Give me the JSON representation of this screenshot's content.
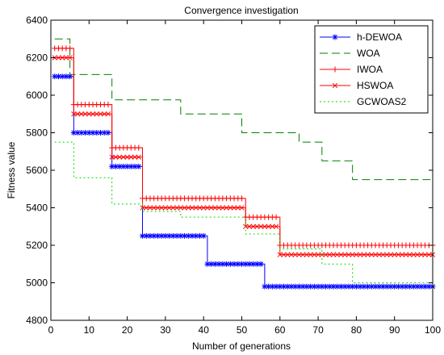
{
  "chart_data": {
    "type": "line",
    "title": "Convergence investigation",
    "xlabel": "Number of generations",
    "ylabel": "Fitness value",
    "xlim": [
      0,
      100
    ],
    "ylim": [
      4800,
      6400
    ],
    "xticks": [
      0,
      10,
      20,
      30,
      40,
      50,
      60,
      70,
      80,
      90,
      100
    ],
    "yticks": [
      4800,
      5000,
      5200,
      5400,
      5600,
      5800,
      6000,
      6200,
      6400
    ],
    "grid": false,
    "legend_position": "top-right",
    "series": [
      {
        "name": "h-DEWOA",
        "color": "#0000ff",
        "dash": "solid",
        "marker": "asterisk",
        "points": [
          [
            1,
            6100
          ],
          [
            6,
            6100
          ],
          [
            6,
            5800
          ],
          [
            16,
            5800
          ],
          [
            16,
            5620
          ],
          [
            24,
            5620
          ],
          [
            24,
            5250
          ],
          [
            41,
            5250
          ],
          [
            41,
            5100
          ],
          [
            56,
            5100
          ],
          [
            56,
            4980
          ],
          [
            100,
            4980
          ]
        ]
      },
      {
        "name": "WOA",
        "color": "#008000",
        "dash": "dashed",
        "marker": "none",
        "points": [
          [
            1,
            6300
          ],
          [
            5,
            6300
          ],
          [
            5,
            6110
          ],
          [
            16,
            6110
          ],
          [
            16,
            5975
          ],
          [
            34,
            5975
          ],
          [
            34,
            5900
          ],
          [
            50,
            5900
          ],
          [
            50,
            5800
          ],
          [
            65,
            5800
          ],
          [
            65,
            5750
          ],
          [
            71,
            5750
          ],
          [
            71,
            5650
          ],
          [
            79,
            5650
          ],
          [
            79,
            5550
          ],
          [
            100,
            5550
          ]
        ]
      },
      {
        "name": "IWOA",
        "color": "#ff0000",
        "dash": "solid",
        "marker": "plus",
        "points": [
          [
            1,
            6250
          ],
          [
            6,
            6250
          ],
          [
            6,
            5950
          ],
          [
            16,
            5950
          ],
          [
            16,
            5720
          ],
          [
            24,
            5720
          ],
          [
            24,
            5450
          ],
          [
            51,
            5450
          ],
          [
            51,
            5350
          ],
          [
            60,
            5350
          ],
          [
            60,
            5200
          ],
          [
            100,
            5200
          ]
        ]
      },
      {
        "name": "HSWOA",
        "color": "#ff0000",
        "dash": "solid",
        "marker": "x",
        "points": [
          [
            1,
            6200
          ],
          [
            6,
            6200
          ],
          [
            6,
            5900
          ],
          [
            16,
            5900
          ],
          [
            16,
            5670
          ],
          [
            24,
            5670
          ],
          [
            24,
            5400
          ],
          [
            51,
            5400
          ],
          [
            51,
            5300
          ],
          [
            60,
            5300
          ],
          [
            60,
            5150
          ],
          [
            100,
            5150
          ]
        ]
      },
      {
        "name": "GCWOAS2",
        "color": "#00dd00",
        "dash": "dotted",
        "marker": "none",
        "points": [
          [
            1,
            5750
          ],
          [
            6,
            5750
          ],
          [
            6,
            5560
          ],
          [
            16,
            5560
          ],
          [
            16,
            5420
          ],
          [
            24,
            5420
          ],
          [
            24,
            5380
          ],
          [
            34,
            5380
          ],
          [
            34,
            5350
          ],
          [
            51,
            5350
          ],
          [
            51,
            5260
          ],
          [
            60,
            5260
          ],
          [
            60,
            5180
          ],
          [
            71,
            5180
          ],
          [
            71,
            5100
          ],
          [
            79,
            5100
          ],
          [
            79,
            5000
          ],
          [
            100,
            5000
          ]
        ]
      }
    ]
  }
}
